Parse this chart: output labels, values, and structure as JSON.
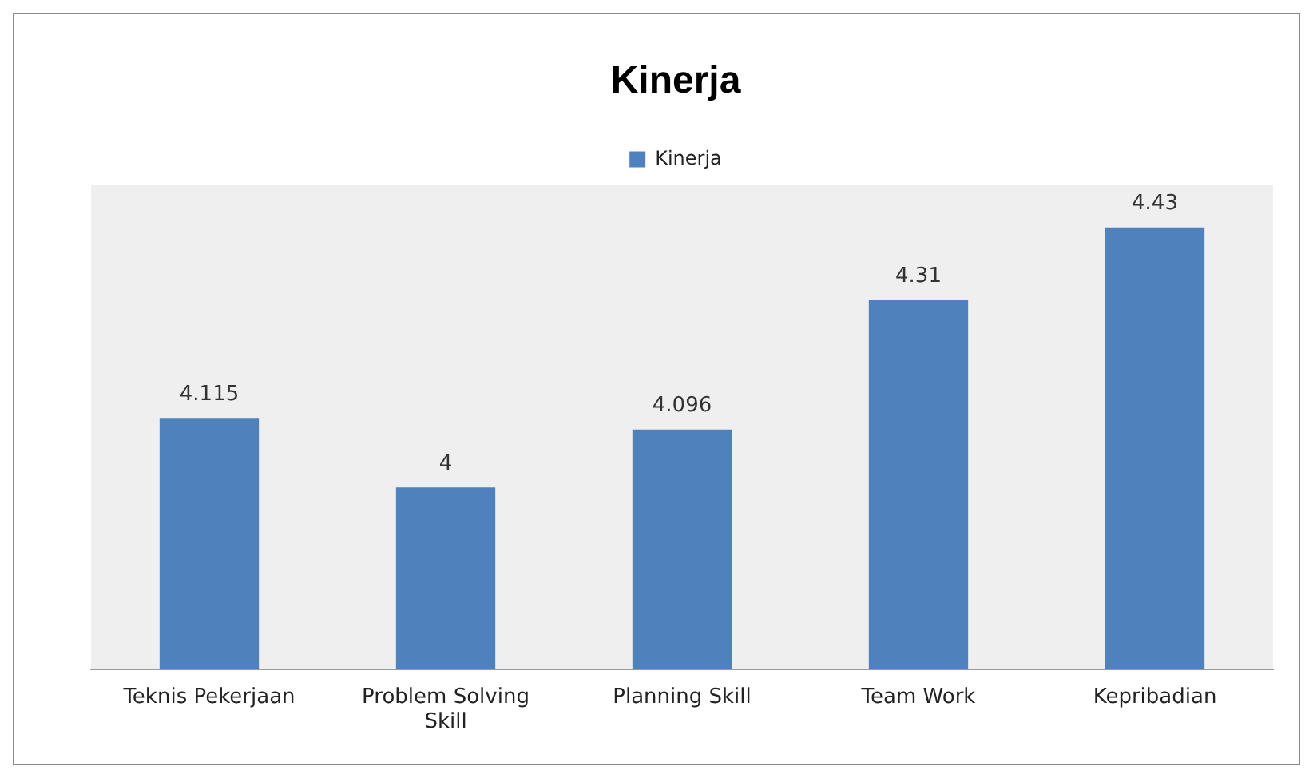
{
  "chart_data": {
    "type": "bar",
    "title": "Kinerja",
    "categories": [
      "Teknis Pekerjaan",
      "Problem Solving Skill",
      "Planning Skill",
      "Team Work",
      "Kepribadian"
    ],
    "series": [
      {
        "name": "Kinerja",
        "color": "#4f81bd",
        "values": [
          4.115,
          4,
          4.096,
          4.31,
          4.43
        ]
      }
    ],
    "ylim": [
      3.7,
      4.5
    ],
    "tick_labels": "x",
    "data_labels": true,
    "legend": "top",
    "grid": false
  }
}
